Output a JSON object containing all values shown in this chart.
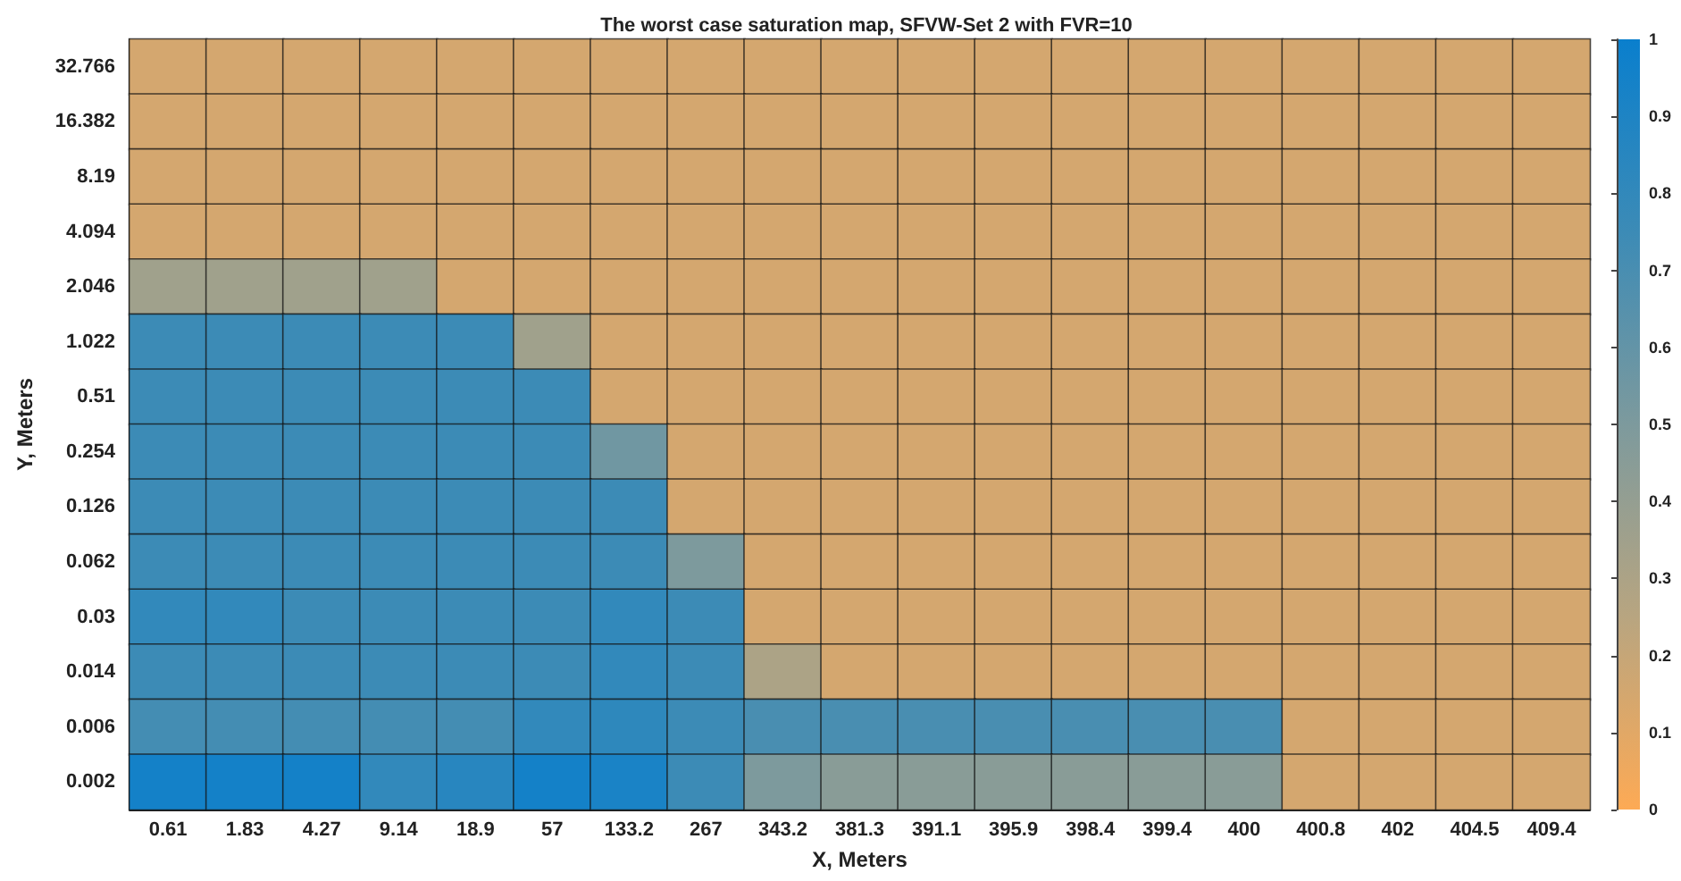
{
  "chart_data": {
    "type": "heatmap",
    "title": "The worst case saturation map, SFVW-Set 2 with FVR=10",
    "xlabel": "X, Meters",
    "ylabel": "Y, Meters",
    "categories": [
      "0.61",
      "1.83",
      "4.27",
      "9.14",
      "18.9",
      "57",
      "133.2",
      "267",
      "343.2",
      "381.3",
      "391.1",
      "395.9",
      "398.4",
      "399.4",
      "400",
      "400.8",
      "402",
      "404.5",
      "409.4"
    ],
    "y_categories": [
      "32.766",
      "16.382",
      "8.19",
      "4.094",
      "2.046",
      "1.022",
      "0.51",
      "0.254",
      "0.126",
      "0.062",
      "0.03",
      "0.014",
      "0.006",
      "0.002"
    ],
    "cells": [
      [
        0.15,
        0.15,
        0.15,
        0.15,
        0.15,
        0.15,
        0.15,
        0.15,
        0.15,
        0.15,
        0.15,
        0.15,
        0.15,
        0.15,
        0.15,
        0.15,
        0.15,
        0.15,
        0.15
      ],
      [
        0.15,
        0.15,
        0.15,
        0.15,
        0.15,
        0.15,
        0.15,
        0.15,
        0.15,
        0.15,
        0.15,
        0.15,
        0.15,
        0.15,
        0.15,
        0.15,
        0.15,
        0.15,
        0.15
      ],
      [
        0.15,
        0.15,
        0.15,
        0.15,
        0.15,
        0.15,
        0.15,
        0.15,
        0.15,
        0.15,
        0.15,
        0.15,
        0.15,
        0.15,
        0.15,
        0.15,
        0.15,
        0.15,
        0.15
      ],
      [
        0.15,
        0.15,
        0.15,
        0.15,
        0.15,
        0.15,
        0.15,
        0.15,
        0.15,
        0.15,
        0.15,
        0.15,
        0.15,
        0.15,
        0.15,
        0.15,
        0.15,
        0.15,
        0.15
      ],
      [
        0.35,
        0.35,
        0.35,
        0.35,
        0.15,
        0.15,
        0.15,
        0.15,
        0.15,
        0.15,
        0.15,
        0.15,
        0.15,
        0.15,
        0.15,
        0.15,
        0.15,
        0.15,
        0.15
      ],
      [
        0.75,
        0.75,
        0.75,
        0.75,
        0.75,
        0.35,
        0.15,
        0.15,
        0.15,
        0.15,
        0.15,
        0.15,
        0.15,
        0.15,
        0.15,
        0.15,
        0.15,
        0.15,
        0.15
      ],
      [
        0.75,
        0.75,
        0.75,
        0.75,
        0.75,
        0.75,
        0.15,
        0.15,
        0.15,
        0.15,
        0.15,
        0.15,
        0.15,
        0.15,
        0.15,
        0.15,
        0.15,
        0.15,
        0.15
      ],
      [
        0.75,
        0.75,
        0.75,
        0.75,
        0.75,
        0.75,
        0.55,
        0.15,
        0.15,
        0.15,
        0.15,
        0.15,
        0.15,
        0.15,
        0.15,
        0.15,
        0.15,
        0.15,
        0.15
      ],
      [
        0.75,
        0.75,
        0.75,
        0.75,
        0.75,
        0.75,
        0.75,
        0.15,
        0.15,
        0.15,
        0.15,
        0.15,
        0.15,
        0.15,
        0.15,
        0.15,
        0.15,
        0.15,
        0.15
      ],
      [
        0.75,
        0.75,
        0.75,
        0.75,
        0.75,
        0.75,
        0.75,
        0.5,
        0.15,
        0.15,
        0.15,
        0.15,
        0.15,
        0.15,
        0.15,
        0.15,
        0.15,
        0.15,
        0.15
      ],
      [
        0.8,
        0.8,
        0.75,
        0.75,
        0.75,
        0.75,
        0.8,
        0.75,
        0.15,
        0.15,
        0.15,
        0.15,
        0.15,
        0.15,
        0.15,
        0.15,
        0.15,
        0.15,
        0.15
      ],
      [
        0.75,
        0.75,
        0.75,
        0.75,
        0.75,
        0.75,
        0.8,
        0.75,
        0.3,
        0.15,
        0.15,
        0.15,
        0.15,
        0.15,
        0.15,
        0.15,
        0.15,
        0.15,
        0.15
      ],
      [
        0.72,
        0.72,
        0.72,
        0.72,
        0.72,
        0.8,
        0.82,
        0.75,
        0.7,
        0.7,
        0.7,
        0.7,
        0.7,
        0.7,
        0.7,
        0.15,
        0.15,
        0.15,
        0.15
      ],
      [
        0.95,
        0.95,
        0.95,
        0.8,
        0.85,
        0.95,
        0.92,
        0.75,
        0.5,
        0.45,
        0.45,
        0.45,
        0.45,
        0.45,
        0.45,
        0.15,
        0.15,
        0.15,
        0.15
      ]
    ],
    "clim": [
      0,
      1
    ],
    "cticks": [
      0,
      0.1,
      0.2,
      0.3,
      0.4,
      0.5,
      0.6,
      0.7,
      0.8,
      0.9,
      1
    ]
  }
}
